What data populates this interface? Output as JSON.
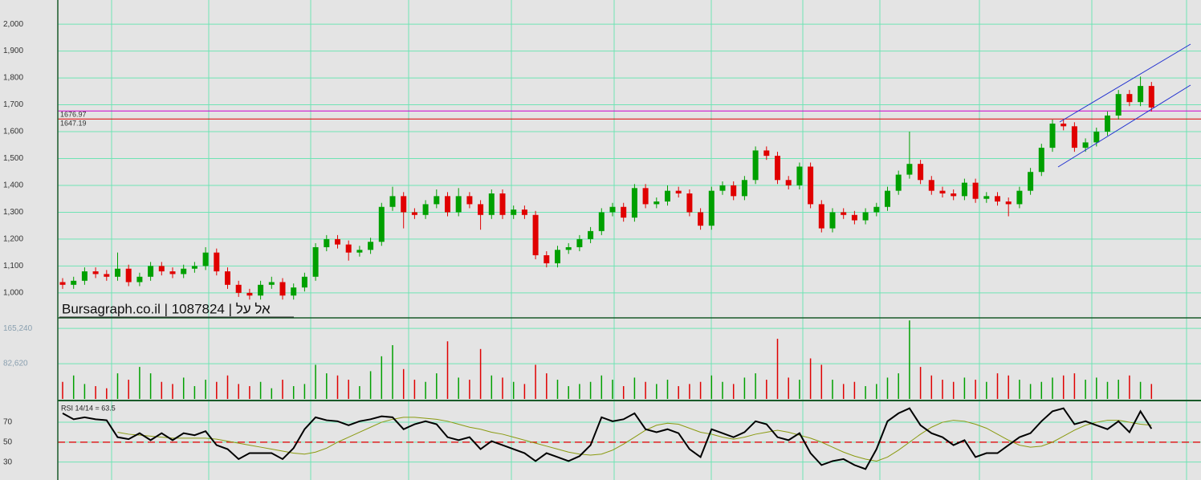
{
  "watermark": "Bursagraph.co.il | 1087824 | אל על",
  "chart_data": [
    {
      "type": "candlestick",
      "ylim": [
        907,
        2090
      ],
      "yticks": [
        {
          "value": 1000,
          "label": "1,000"
        },
        {
          "value": 1100,
          "label": "1,100"
        },
        {
          "value": 1200,
          "label": "1,200"
        },
        {
          "value": 1300,
          "label": "1,300"
        },
        {
          "value": 1400,
          "label": "1,400"
        },
        {
          "value": 1500,
          "label": "1,500"
        },
        {
          "value": 1600,
          "label": "1,600"
        },
        {
          "value": 1700,
          "label": "1,700"
        },
        {
          "value": 1800,
          "label": "1,800"
        },
        {
          "value": 1900,
          "label": "1,900"
        },
        {
          "value": 2000,
          "label": "2,000"
        }
      ],
      "grid": true,
      "up_color": "#00a000",
      "down_color": "#e00000",
      "hlines": [
        {
          "value": 1676.97,
          "color": "#cc00cc"
        },
        {
          "value": 1647.19,
          "color": "#dd0000"
        }
      ],
      "ohlc": [
        [
          1040,
          1055,
          1015,
          1030
        ],
        [
          1030,
          1060,
          1015,
          1045
        ],
        [
          1045,
          1095,
          1030,
          1080
        ],
        [
          1080,
          1095,
          1055,
          1070
        ],
        [
          1070,
          1085,
          1045,
          1060
        ],
        [
          1060,
          1150,
          1045,
          1090
        ],
        [
          1090,
          1105,
          1025,
          1040
        ],
        [
          1040,
          1075,
          1025,
          1060
        ],
        [
          1060,
          1115,
          1045,
          1100
        ],
        [
          1100,
          1115,
          1065,
          1080
        ],
        [
          1080,
          1095,
          1055,
          1070
        ],
        [
          1070,
          1105,
          1055,
          1090
        ],
        [
          1090,
          1115,
          1075,
          1100
        ],
        [
          1100,
          1170,
          1085,
          1150
        ],
        [
          1150,
          1165,
          1065,
          1080
        ],
        [
          1080,
          1095,
          1015,
          1030
        ],
        [
          1030,
          1045,
          985,
          1000
        ],
        [
          1000,
          1015,
          975,
          990
        ],
        [
          990,
          1045,
          975,
          1030
        ],
        [
          1030,
          1060,
          1015,
          1040
        ],
        [
          1040,
          1055,
          975,
          990
        ],
        [
          990,
          1035,
          975,
          1020
        ],
        [
          1020,
          1075,
          1005,
          1060
        ],
        [
          1060,
          1185,
          1045,
          1170
        ],
        [
          1170,
          1215,
          1155,
          1200
        ],
        [
          1200,
          1215,
          1165,
          1180
        ],
        [
          1180,
          1195,
          1120,
          1150
        ],
        [
          1150,
          1175,
          1135,
          1160
        ],
        [
          1160,
          1205,
          1145,
          1190
        ],
        [
          1190,
          1335,
          1175,
          1320
        ],
        [
          1320,
          1395,
          1305,
          1360
        ],
        [
          1360,
          1375,
          1240,
          1300
        ],
        [
          1300,
          1315,
          1275,
          1290
        ],
        [
          1290,
          1345,
          1275,
          1330
        ],
        [
          1330,
          1385,
          1315,
          1360
        ],
        [
          1360,
          1375,
          1285,
          1300
        ],
        [
          1300,
          1390,
          1285,
          1360
        ],
        [
          1360,
          1375,
          1315,
          1330
        ],
        [
          1330,
          1345,
          1235,
          1290
        ],
        [
          1290,
          1385,
          1275,
          1370
        ],
        [
          1370,
          1385,
          1275,
          1290
        ],
        [
          1290,
          1325,
          1275,
          1310
        ],
        [
          1310,
          1325,
          1275,
          1290
        ],
        [
          1290,
          1305,
          1125,
          1140
        ],
        [
          1140,
          1155,
          1095,
          1110
        ],
        [
          1110,
          1175,
          1095,
          1160
        ],
        [
          1160,
          1185,
          1145,
          1170
        ],
        [
          1170,
          1215,
          1155,
          1200
        ],
        [
          1200,
          1245,
          1185,
          1230
        ],
        [
          1230,
          1315,
          1215,
          1300
        ],
        [
          1300,
          1335,
          1285,
          1320
        ],
        [
          1320,
          1335,
          1265,
          1280
        ],
        [
          1280,
          1405,
          1265,
          1390
        ],
        [
          1390,
          1405,
          1315,
          1330
        ],
        [
          1330,
          1355,
          1315,
          1340
        ],
        [
          1340,
          1400,
          1325,
          1380
        ],
        [
          1380,
          1395,
          1355,
          1370
        ],
        [
          1370,
          1385,
          1285,
          1300
        ],
        [
          1300,
          1315,
          1235,
          1250
        ],
        [
          1250,
          1395,
          1235,
          1380
        ],
        [
          1380,
          1415,
          1365,
          1400
        ],
        [
          1400,
          1415,
          1345,
          1360
        ],
        [
          1360,
          1435,
          1345,
          1420
        ],
        [
          1420,
          1545,
          1405,
          1530
        ],
        [
          1530,
          1545,
          1495,
          1510
        ],
        [
          1510,
          1525,
          1405,
          1420
        ],
        [
          1420,
          1435,
          1385,
          1400
        ],
        [
          1400,
          1485,
          1385,
          1470
        ],
        [
          1470,
          1485,
          1315,
          1330
        ],
        [
          1330,
          1345,
          1225,
          1240
        ],
        [
          1240,
          1315,
          1225,
          1300
        ],
        [
          1300,
          1315,
          1275,
          1290
        ],
        [
          1290,
          1305,
          1255,
          1270
        ],
        [
          1270,
          1315,
          1255,
          1300
        ],
        [
          1300,
          1335,
          1285,
          1320
        ],
        [
          1320,
          1395,
          1305,
          1380
        ],
        [
          1380,
          1455,
          1365,
          1440
        ],
        [
          1440,
          1600,
          1425,
          1480
        ],
        [
          1480,
          1495,
          1405,
          1420
        ],
        [
          1420,
          1435,
          1365,
          1380
        ],
        [
          1380,
          1395,
          1355,
          1370
        ],
        [
          1370,
          1385,
          1345,
          1360
        ],
        [
          1360,
          1425,
          1345,
          1410
        ],
        [
          1410,
          1425,
          1335,
          1350
        ],
        [
          1350,
          1375,
          1335,
          1360
        ],
        [
          1360,
          1375,
          1325,
          1340
        ],
        [
          1340,
          1355,
          1285,
          1330
        ],
        [
          1330,
          1395,
          1315,
          1380
        ],
        [
          1380,
          1465,
          1365,
          1450
        ],
        [
          1450,
          1555,
          1435,
          1540
        ],
        [
          1540,
          1645,
          1525,
          1630
        ],
        [
          1630,
          1645,
          1605,
          1620
        ],
        [
          1620,
          1635,
          1525,
          1540
        ],
        [
          1540,
          1575,
          1525,
          1560
        ],
        [
          1560,
          1615,
          1545,
          1600
        ],
        [
          1600,
          1675,
          1585,
          1660
        ],
        [
          1660,
          1755,
          1645,
          1740
        ],
        [
          1740,
          1755,
          1695,
          1710
        ],
        [
          1710,
          1805,
          1695,
          1770
        ],
        [
          1770,
          1785,
          1675,
          1690
        ]
      ]
    },
    {
      "type": "bar",
      "ylim": [
        0,
        190000
      ],
      "yticks": [
        {
          "value": 82620,
          "label": "82,620"
        },
        {
          "value": 165240,
          "label": "165,240"
        }
      ],
      "grid": true,
      "values": [
        40000,
        55000,
        35000,
        30000,
        25000,
        60000,
        45000,
        75000,
        60000,
        40000,
        35000,
        50000,
        30000,
        45000,
        40000,
        55000,
        35000,
        30000,
        40000,
        25000,
        45000,
        30000,
        35000,
        80000,
        60000,
        55000,
        45000,
        30000,
        65000,
        100000,
        126000,
        70000,
        45000,
        40000,
        60000,
        135000,
        50000,
        45000,
        117000,
        55000,
        50000,
        40000,
        35000,
        80000,
        60000,
        45000,
        30000,
        35000,
        40000,
        55000,
        45000,
        30000,
        50000,
        40000,
        35000,
        45000,
        30000,
        35000,
        40000,
        55000,
        40000,
        35000,
        50000,
        60000,
        45000,
        141000,
        50000,
        45000,
        95000,
        80000,
        45000,
        35000,
        40000,
        30000,
        35000,
        50000,
        60000,
        184000,
        75000,
        55000,
        45000,
        40000,
        50000,
        45000,
        40000,
        60000,
        55000,
        45000,
        35000,
        40000,
        50000,
        55000,
        60000,
        45000,
        50000,
        40000,
        45000,
        55000,
        40000,
        35000
      ]
    },
    {
      "type": "line",
      "title": "RSI 14/14 = 63.5",
      "ylim": [
        12,
        91
      ],
      "yticks": [
        30,
        50,
        70
      ],
      "grid": true,
      "reference_line": 50,
      "reference_color": "#dd2222",
      "series": [
        {
          "color": "#000000",
          "values": [
            79,
            73,
            75,
            73,
            72,
            55,
            53,
            59,
            52,
            59,
            52,
            59,
            57,
            61,
            47,
            43,
            33,
            39,
            39,
            39,
            33,
            44,
            63,
            75,
            72,
            71,
            67,
            71,
            73,
            76,
            75,
            63,
            68,
            71,
            68,
            55,
            52,
            55,
            43,
            51,
            47,
            43,
            39,
            31,
            39,
            35,
            31,
            36,
            47,
            75,
            71,
            73,
            79,
            63,
            60,
            63,
            59,
            43,
            35,
            63,
            59,
            55,
            60,
            71,
            68,
            55,
            52,
            59,
            39,
            27,
            31,
            33,
            27,
            23,
            43,
            71,
            79,
            84,
            67,
            59,
            55,
            47,
            52,
            35,
            39,
            39,
            47,
            55,
            59,
            71,
            81,
            84,
            68,
            71,
            67,
            63,
            71,
            60,
            81,
            63.5
          ]
        },
        {
          "color": "#8a9a10",
          "values": [
            null,
            null,
            null,
            null,
            null,
            60,
            58,
            57,
            56,
            55,
            54,
            54,
            54,
            54,
            53,
            51,
            49,
            47,
            45,
            43,
            41,
            39,
            38,
            40,
            44,
            50,
            55,
            60,
            65,
            70,
            73,
            75,
            75,
            74,
            73,
            71,
            68,
            65,
            63,
            60,
            58,
            55,
            52,
            49,
            46,
            43,
            40,
            38,
            37,
            38,
            42,
            48,
            55,
            62,
            67,
            69,
            68,
            64,
            60,
            58,
            55,
            53,
            55,
            58,
            60,
            62,
            60,
            57,
            54,
            50,
            45,
            40,
            36,
            33,
            31,
            35,
            42,
            50,
            58,
            65,
            70,
            72,
            71,
            68,
            64,
            58,
            52,
            47,
            45,
            46,
            50,
            56,
            62,
            67,
            70,
            72,
            72,
            70,
            68,
            67
          ]
        }
      ]
    }
  ]
}
